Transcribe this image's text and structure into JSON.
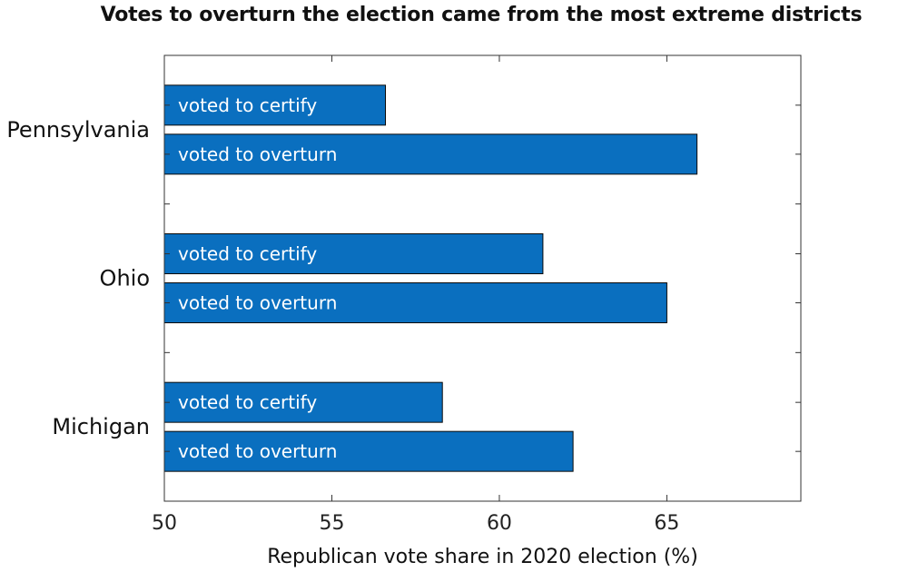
{
  "chart_data": {
    "type": "bar",
    "orientation": "horizontal",
    "title": "Votes to overturn the election came from the most extreme districts",
    "xlabel": "Republican vote share in 2020 election (%)",
    "ylabel": "",
    "xlim": [
      50,
      69
    ],
    "xticks": [
      50,
      55,
      60,
      65
    ],
    "grid": false,
    "categories": [
      "Pennsylvania",
      "Ohio",
      "Michigan"
    ],
    "series": [
      {
        "name": "voted to certify",
        "values": [
          56.6,
          61.3,
          58.3
        ]
      },
      {
        "name": "voted to overturn",
        "values": [
          65.9,
          65.0,
          62.2
        ]
      }
    ],
    "bar_color": "#0A6FBF"
  }
}
